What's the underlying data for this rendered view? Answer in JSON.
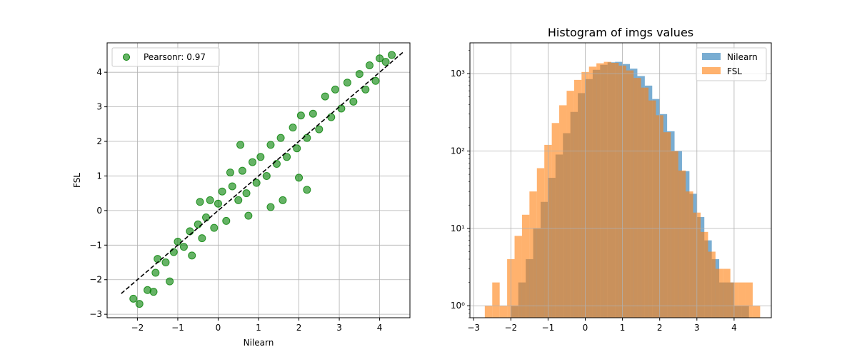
{
  "chart_data": [
    {
      "type": "scatter",
      "title": "",
      "xlabel": "Nilearn",
      "ylabel": "FSL",
      "xlim": [
        -2.75,
        4.75
      ],
      "ylim": [
        -3.1,
        4.85
      ],
      "xticks": [
        -2,
        -1,
        0,
        1,
        2,
        3,
        4
      ],
      "yticks": [
        -3,
        -2,
        -1,
        0,
        1,
        2,
        3,
        4
      ],
      "grid": true,
      "legend_position": "upper-left",
      "series": [
        {
          "name": "Pearsonr: 0.97",
          "color": "#008000",
          "alpha": 0.6,
          "points": [
            [
              -2.1,
              -2.55
            ],
            [
              -1.95,
              -2.7
            ],
            [
              -1.75,
              -2.3
            ],
            [
              -1.6,
              -2.35
            ],
            [
              -1.55,
              -1.8
            ],
            [
              -1.2,
              -2.05
            ],
            [
              -1.5,
              -1.4
            ],
            [
              -1.3,
              -1.5
            ],
            [
              -1.1,
              -1.2
            ],
            [
              -1.0,
              -0.9
            ],
            [
              -0.85,
              -1.05
            ],
            [
              -0.7,
              -0.6
            ],
            [
              -0.65,
              -1.3
            ],
            [
              -0.5,
              -0.4
            ],
            [
              -0.4,
              -0.8
            ],
            [
              -0.3,
              -0.2
            ],
            [
              -0.2,
              0.3
            ],
            [
              -0.1,
              -0.5
            ],
            [
              0.0,
              0.2
            ],
            [
              0.1,
              0.55
            ],
            [
              0.2,
              -0.3
            ],
            [
              0.35,
              0.7
            ],
            [
              0.5,
              0.3
            ],
            [
              0.6,
              1.15
            ],
            [
              0.7,
              0.5
            ],
            [
              0.85,
              1.4
            ],
            [
              0.95,
              0.8
            ],
            [
              1.05,
              1.55
            ],
            [
              1.2,
              1.0
            ],
            [
              1.3,
              1.9
            ],
            [
              1.45,
              1.35
            ],
            [
              1.55,
              2.1
            ],
            [
              1.7,
              1.55
            ],
            [
              1.85,
              2.4
            ],
            [
              1.95,
              1.8
            ],
            [
              2.05,
              2.75
            ],
            [
              2.2,
              2.1
            ],
            [
              2.35,
              2.8
            ],
            [
              2.5,
              2.35
            ],
            [
              2.65,
              3.3
            ],
            [
              2.8,
              2.7
            ],
            [
              2.9,
              3.5
            ],
            [
              3.05,
              2.95
            ],
            [
              3.2,
              3.7
            ],
            [
              3.35,
              3.15
            ],
            [
              3.5,
              3.95
            ],
            [
              3.65,
              3.5
            ],
            [
              3.75,
              4.2
            ],
            [
              3.9,
              3.75
            ],
            [
              4.0,
              4.4
            ],
            [
              4.15,
              4.3
            ],
            [
              4.3,
              4.5
            ],
            [
              0.75,
              -0.15
            ],
            [
              1.3,
              0.1
            ],
            [
              1.6,
              0.3
            ],
            [
              2.0,
              0.95
            ],
            [
              2.2,
              0.6
            ],
            [
              0.55,
              1.9
            ],
            [
              0.3,
              1.1
            ],
            [
              -0.45,
              0.25
            ]
          ]
        }
      ],
      "reference_line": {
        "x": [
          -2.4,
          4.6
        ],
        "y": [
          -2.4,
          4.6
        ],
        "color": "#000000",
        "style": "dashed"
      }
    },
    {
      "type": "histogram",
      "title": "Histogram of imgs values",
      "xlabel": "",
      "ylabel": "",
      "xlim": [
        -3.1,
        5.0
      ],
      "ylim": [
        0.7,
        2500
      ],
      "yscale": "log",
      "xticks": [
        -3,
        -2,
        -1,
        0,
        1,
        2,
        3,
        4
      ],
      "yticks": [
        1,
        10,
        100,
        1000
      ],
      "ytick_labels": [
        "10⁰",
        "10¹",
        "10²",
        "10³"
      ],
      "grid": true,
      "legend_position": "upper-right",
      "series": [
        {
          "name": "Nilearn",
          "color": "#1f77b4",
          "alpha": 0.6,
          "bins": [
            [
              -2.0,
              1
            ],
            [
              -1.8,
              2
            ],
            [
              -1.6,
              4
            ],
            [
              -1.4,
              10
            ],
            [
              -1.2,
              22
            ],
            [
              -1.0,
              45
            ],
            [
              -0.8,
              90
            ],
            [
              -0.6,
              170
            ],
            [
              -0.4,
              320
            ],
            [
              -0.2,
              560
            ],
            [
              0.0,
              850
            ],
            [
              0.2,
              1120
            ],
            [
              0.4,
              1300
            ],
            [
              0.6,
              1400
            ],
            [
              0.8,
              1420
            ],
            [
              1.0,
              1330
            ],
            [
              1.2,
              1160
            ],
            [
              1.4,
              930
            ],
            [
              1.6,
              700
            ],
            [
              1.8,
              470
            ],
            [
              2.0,
              300
            ],
            [
              2.2,
              180
            ],
            [
              2.4,
              100
            ],
            [
              2.6,
              55
            ],
            [
              2.8,
              28
            ],
            [
              3.0,
              14
            ],
            [
              3.2,
              7
            ],
            [
              3.4,
              4
            ],
            [
              3.6,
              2
            ],
            [
              3.8,
              2
            ],
            [
              4.0,
              1
            ],
            [
              4.2,
              1
            ]
          ]
        },
        {
          "name": "FSL",
          "color": "#ff7f0e",
          "alpha": 0.6,
          "bins": [
            [
              -2.7,
              1
            ],
            [
              -2.5,
              2
            ],
            [
              -2.3,
              1
            ],
            [
              -2.1,
              4
            ],
            [
              -1.9,
              8
            ],
            [
              -1.7,
              15
            ],
            [
              -1.5,
              30
            ],
            [
              -1.3,
              60
            ],
            [
              -1.1,
              120
            ],
            [
              -0.9,
              230
            ],
            [
              -0.7,
              390
            ],
            [
              -0.5,
              600
            ],
            [
              -0.3,
              830
            ],
            [
              -0.1,
              1050
            ],
            [
              0.1,
              1230
            ],
            [
              0.3,
              1360
            ],
            [
              0.5,
              1420
            ],
            [
              0.7,
              1380
            ],
            [
              0.9,
              1270
            ],
            [
              1.1,
              1100
            ],
            [
              1.3,
              880
            ],
            [
              1.5,
              660
            ],
            [
              1.7,
              450
            ],
            [
              1.9,
              290
            ],
            [
              2.1,
              175
            ],
            [
              2.3,
              100
            ],
            [
              2.5,
              56
            ],
            [
              2.7,
              30
            ],
            [
              2.9,
              16
            ],
            [
              3.1,
              9
            ],
            [
              3.3,
              5
            ],
            [
              3.5,
              3
            ],
            [
              3.7,
              3
            ],
            [
              3.9,
              2
            ],
            [
              4.1,
              2
            ],
            [
              4.3,
              2
            ],
            [
              4.5,
              1
            ]
          ]
        }
      ]
    }
  ]
}
